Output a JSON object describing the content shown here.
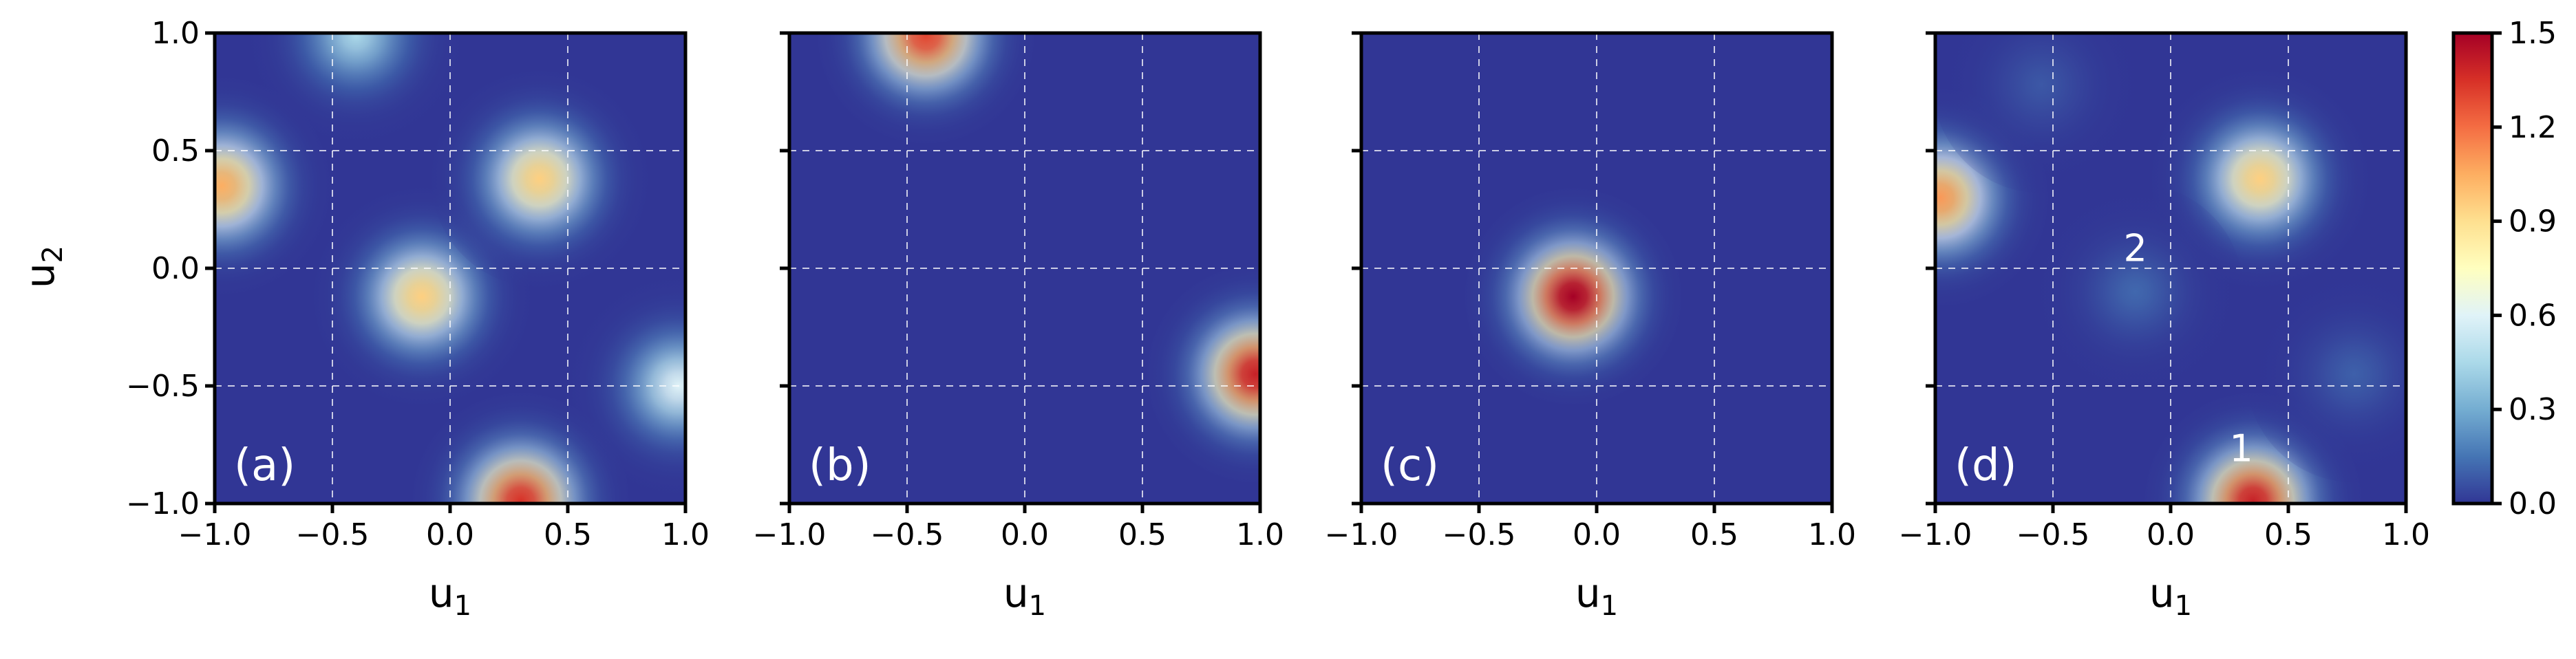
{
  "figure": {
    "xlabel_main": "u",
    "xlabel_sub": "1",
    "ylabel_main": "u",
    "ylabel_sub": "2"
  },
  "chart_data": [
    {
      "type": "heatmap",
      "panel_label": "(a)",
      "xlim": [
        -1.0,
        1.0
      ],
      "ylim": [
        -1.0,
        1.0
      ],
      "x_ticks": [
        "−1.0",
        "−0.5",
        "0.0",
        "0.5",
        "1.0"
      ],
      "y_ticks": [
        "−1.0",
        "−0.5",
        "0.0",
        "0.5",
        "1.0"
      ],
      "grid": true,
      "blobs": [
        {
          "x": -0.12,
          "y": -0.12,
          "amplitude": 0.95
        },
        {
          "x": 0.38,
          "y": 0.38,
          "amplitude": 0.95
        },
        {
          "x": -0.97,
          "y": 0.35,
          "amplitude": 1.05
        },
        {
          "x": 0.97,
          "y": -0.5,
          "amplitude": 0.6
        },
        {
          "x": 0.3,
          "y": -0.99,
          "amplitude": 1.35
        },
        {
          "x": -0.4,
          "y": 0.99,
          "amplitude": 0.45
        }
      ],
      "annotations": []
    },
    {
      "type": "heatmap",
      "panel_label": "(b)",
      "xlim": [
        -1.0,
        1.0
      ],
      "ylim": [
        -1.0,
        1.0
      ],
      "x_ticks": [
        "−1.0",
        "−0.5",
        "0.0",
        "0.5",
        "1.0"
      ],
      "y_ticks": [
        "−1.0",
        "−0.5",
        "0.0",
        "0.5",
        "1.0"
      ],
      "grid": true,
      "blobs": [
        {
          "x": -0.42,
          "y": 0.99,
          "amplitude": 1.3
        },
        {
          "x": 0.98,
          "y": -0.45,
          "amplitude": 1.4
        }
      ],
      "annotations": []
    },
    {
      "type": "heatmap",
      "panel_label": "(c)",
      "xlim": [
        -1.0,
        1.0
      ],
      "ylim": [
        -1.0,
        1.0
      ],
      "x_ticks": [
        "−1.0",
        "−0.5",
        "0.0",
        "0.5",
        "1.0"
      ],
      "y_ticks": [
        "−1.0",
        "−0.5",
        "0.0",
        "0.5",
        "1.0"
      ],
      "grid": true,
      "blobs": [
        {
          "x": -0.1,
          "y": -0.12,
          "amplitude": 1.5
        }
      ],
      "annotations": []
    },
    {
      "type": "heatmap",
      "panel_label": "(d)",
      "xlim": [
        -1.0,
        1.0
      ],
      "ylim": [
        -1.0,
        1.0
      ],
      "x_ticks": [
        "−1.0",
        "−0.5",
        "0.0",
        "0.5",
        "1.0"
      ],
      "y_ticks": [
        "−1.0",
        "−0.5",
        "0.0",
        "0.5",
        "1.0"
      ],
      "grid": true,
      "blobs": [
        {
          "x": 0.38,
          "y": 0.38,
          "amplitude": 0.95
        },
        {
          "x": -0.98,
          "y": 0.3,
          "amplitude": 1.1
        },
        {
          "x": 0.35,
          "y": -0.99,
          "amplitude": 1.4
        },
        {
          "x": -0.15,
          "y": -0.1,
          "amplitude": 0.12
        },
        {
          "x": 0.78,
          "y": -0.45,
          "amplitude": 0.1
        },
        {
          "x": -0.55,
          "y": 0.78,
          "amplitude": 0.08
        }
      ],
      "annotations": [
        {
          "text": "1",
          "x": 0.3,
          "y": -0.82
        },
        {
          "text": "2",
          "x": -0.15,
          "y": 0.03
        }
      ]
    }
  ],
  "colorbar": {
    "colormap": "RdYlBu_r",
    "vmin": 0.0,
    "vmax": 1.5,
    "ticks": [
      "0.0",
      "0.3",
      "0.6",
      "0.9",
      "1.2",
      "1.5"
    ],
    "tick_values": [
      0.0,
      0.3,
      0.6,
      0.9,
      1.2,
      1.5
    ]
  },
  "colors": {
    "background": "#313695",
    "grid": "#ffffff",
    "axis": "#000000",
    "panel_label": "#ffffff"
  }
}
